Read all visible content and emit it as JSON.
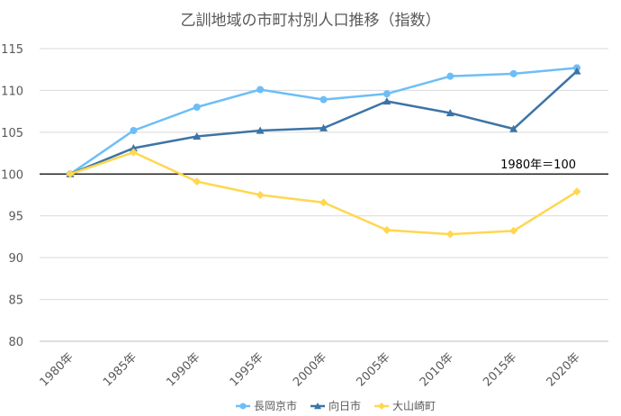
{
  "chart_data": {
    "type": "line",
    "title": "乙訓地域の市町村別人口推移（指数）",
    "categories": [
      "1980年",
      "1985年",
      "1990年",
      "1995年",
      "2000年",
      "2005年",
      "2010年",
      "2015年",
      "2020年"
    ],
    "ylim": [
      80,
      115
    ],
    "yticks": [
      "80",
      "85",
      "90",
      "95",
      "100",
      "105",
      "110",
      "115"
    ],
    "grid": true,
    "legend_position": "bottom",
    "reference_line": {
      "value": 100,
      "label": "1980年＝100"
    },
    "series": [
      {
        "name": "長岡京市",
        "color": "#6DBEF7",
        "marker": "circle",
        "values": [
          100,
          105.2,
          108.0,
          110.1,
          108.9,
          109.6,
          111.7,
          112.0,
          112.7
        ]
      },
      {
        "name": "向日市",
        "color": "#3D74A6",
        "marker": "triangle",
        "values": [
          100,
          103.1,
          104.5,
          105.2,
          105.5,
          108.7,
          107.3,
          105.4,
          112.3
        ]
      },
      {
        "name": "大山崎町",
        "color": "#FFD750",
        "marker": "diamond",
        "values": [
          100,
          102.6,
          99.1,
          97.5,
          96.6,
          93.3,
          92.8,
          93.2,
          97.9
        ]
      }
    ]
  }
}
